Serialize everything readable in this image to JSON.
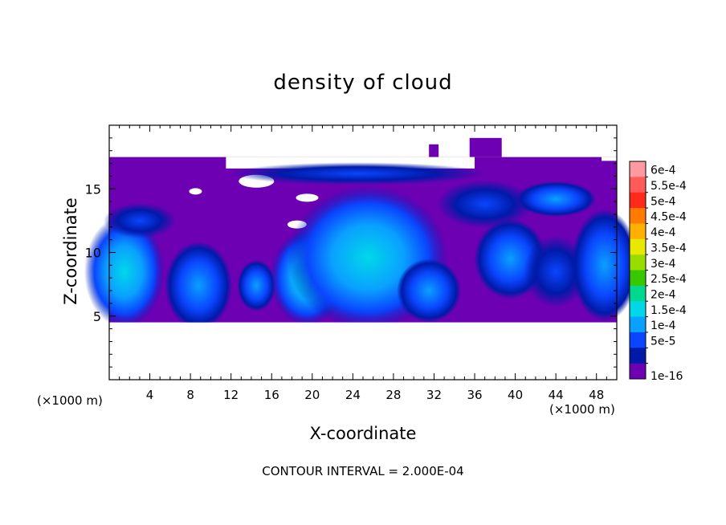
{
  "chart_data": {
    "type": "heatmap",
    "title": "density of cloud",
    "xlabel": "X-coordinate",
    "ylabel": "Z-coordinate",
    "x_unit": "(×1000 m)",
    "x_ticks": [
      4,
      8,
      12,
      16,
      20,
      24,
      28,
      32,
      36,
      40,
      44,
      48
    ],
    "y_ticks": [
      5,
      10,
      15
    ],
    "xlim": [
      0,
      50
    ],
    "ylim": [
      0,
      20
    ],
    "colorbar": {
      "labels": [
        "6e-4",
        "5.5e-4",
        "5e-4",
        "4.5e-4",
        "4e-4",
        "3.5e-4",
        "3e-4",
        "2.5e-4",
        "2e-4",
        "1.5e-4",
        "1e-4",
        "5e-5",
        "1e-16"
      ],
      "colors": [
        "#ff9aa0",
        "#ff5a5a",
        "#ff2a1a",
        "#ff7a00",
        "#ffb000",
        "#e8e800",
        "#9adc00",
        "#38c800",
        "#00d890",
        "#00d8e8",
        "#0aa0ff",
        "#0a46ff",
        "#001aa8",
        "#6e00b4"
      ]
    },
    "footer": "CONTOUR INTERVAL = 2.000E-04",
    "cloud_base_z": 4.5,
    "cloud_top_z": 17.5,
    "cells": [
      {
        "x": 1.5,
        "z": 8.5,
        "value": 0.00018
      },
      {
        "x": 9,
        "z": 7.5,
        "value": 0.00012
      },
      {
        "x": 14.5,
        "z": 7.5,
        "value": 0.0001
      },
      {
        "x": 25,
        "z": 9.5,
        "value": 0.00016
      },
      {
        "x": 29,
        "z": 8.5,
        "value": 0.00014
      },
      {
        "x": 41,
        "z": 9.5,
        "value": 0.0001
      },
      {
        "x": 48.5,
        "z": 9.0,
        "value": 0.00012
      },
      {
        "x": 43,
        "z": 14,
        "value": 7e-05
      }
    ]
  }
}
